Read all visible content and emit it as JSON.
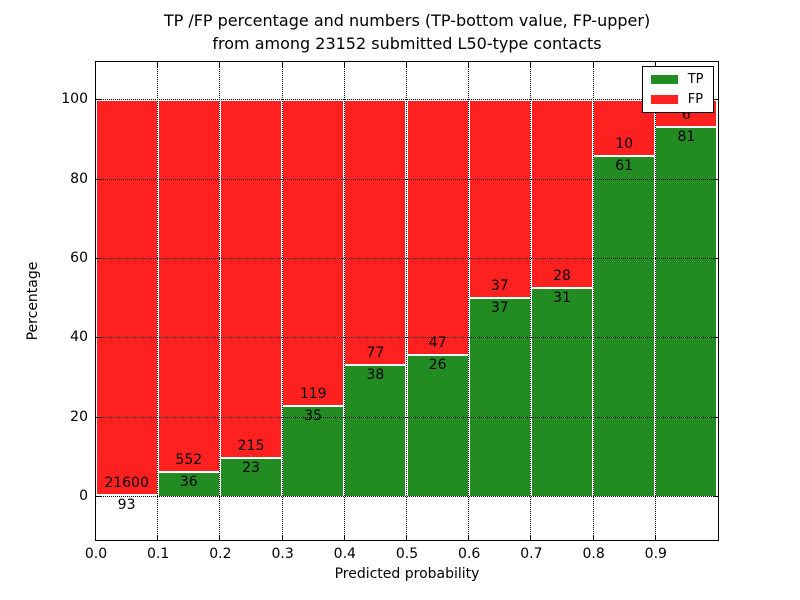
{
  "figure": {
    "title_line1": "TP /FP percentage and numbers (TP-bottom value, FP-upper)",
    "title_line2": "from among 23152 submitted L50-type contacts"
  },
  "chart_data": {
    "type": "bar",
    "stacked": true,
    "title": "TP /FP percentage and numbers (TP-bottom value, FP-upper) from among 23152 submitted L50-type contacts",
    "xlabel": "Predicted probability",
    "ylabel": "Percentage",
    "categories": [
      "0.0-0.1",
      "0.1-0.2",
      "0.2-0.3",
      "0.3-0.4",
      "0.4-0.5",
      "0.5-0.6",
      "0.6-0.7",
      "0.7-0.8",
      "0.8-0.9",
      "0.9-1.0"
    ],
    "series": [
      {
        "name": "TP",
        "color": "#228b22",
        "counts": [
          93,
          36,
          23,
          35,
          38,
          26,
          37,
          31,
          61,
          81
        ],
        "percent": [
          0.4,
          6.1,
          9.7,
          22.7,
          33.0,
          35.6,
          50.0,
          52.5,
          85.9,
          93.1
        ]
      },
      {
        "name": "FP",
        "color": "#ff2020",
        "counts": [
          21600,
          552,
          215,
          119,
          77,
          47,
          37,
          28,
          10,
          6
        ],
        "percent": [
          99.6,
          93.9,
          90.3,
          77.3,
          67.0,
          64.4,
          50.0,
          47.5,
          14.1,
          6.9
        ]
      }
    ],
    "xticks": [
      "0.0",
      "0.1",
      "0.2",
      "0.3",
      "0.4",
      "0.5",
      "0.6",
      "0.7",
      "0.8",
      "0.9"
    ],
    "yticks": [
      0,
      20,
      40,
      60,
      80,
      100
    ],
    "xlim": [
      0.0,
      1.0
    ],
    "ylim": [
      -10.8,
      109.6
    ],
    "grid": "dotted",
    "bar_edge_color": "#ffffff",
    "legend": {
      "position": "upper right",
      "entries": [
        {
          "label": "TP",
          "color": "#228b22"
        },
        {
          "label": "FP",
          "color": "#ff2020"
        }
      ]
    }
  }
}
